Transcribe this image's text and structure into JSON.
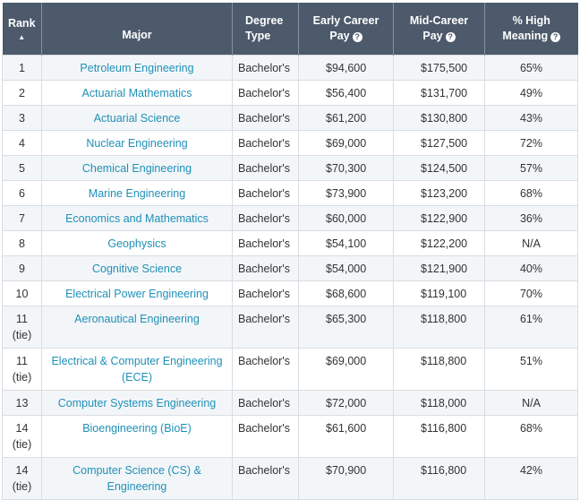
{
  "headers": {
    "rank": "Rank",
    "major": "Major",
    "degree_line1": "Degree",
    "degree_line2": "Type",
    "early_line1": "Early Career",
    "early_line2": "Pay",
    "mid_line1": "Mid-Career",
    "mid_line2": "Pay",
    "meaning_line1": "% High",
    "meaning_line2": "Meaning",
    "sort_indicator": "▲"
  },
  "rows": [
    {
      "rank": "1",
      "major": "Petroleum Engineering",
      "degree": "Bachelor's",
      "early": "$94,600",
      "mid": "$175,500",
      "meaning": "65%"
    },
    {
      "rank": "2",
      "major": "Actuarial Mathematics",
      "degree": "Bachelor's",
      "early": "$56,400",
      "mid": "$131,700",
      "meaning": "49%"
    },
    {
      "rank": "3",
      "major": "Actuarial Science",
      "degree": "Bachelor's",
      "early": "$61,200",
      "mid": "$130,800",
      "meaning": "43%"
    },
    {
      "rank": "4",
      "major": "Nuclear Engineering",
      "degree": "Bachelor's",
      "early": "$69,000",
      "mid": "$127,500",
      "meaning": "72%"
    },
    {
      "rank": "5",
      "major": "Chemical Engineering",
      "degree": "Bachelor's",
      "early": "$70,300",
      "mid": "$124,500",
      "meaning": "57%"
    },
    {
      "rank": "6",
      "major": "Marine Engineering",
      "degree": "Bachelor's",
      "early": "$73,900",
      "mid": "$123,200",
      "meaning": "68%"
    },
    {
      "rank": "7",
      "major": "Economics and Mathematics",
      "degree": "Bachelor's",
      "early": "$60,000",
      "mid": "$122,900",
      "meaning": "36%"
    },
    {
      "rank": "8",
      "major": "Geophysics",
      "degree": "Bachelor's",
      "early": "$54,100",
      "mid": "$122,200",
      "meaning": "N/A"
    },
    {
      "rank": "9",
      "major": "Cognitive Science",
      "degree": "Bachelor's",
      "early": "$54,000",
      "mid": "$121,900",
      "meaning": "40%"
    },
    {
      "rank": "10",
      "major": "Electrical Power Engineering",
      "degree": "Bachelor's",
      "early": "$68,600",
      "mid": "$119,100",
      "meaning": "70%"
    },
    {
      "rank": "11 (tie)",
      "major": "Aeronautical Engineering",
      "degree": "Bachelor's",
      "early": "$65,300",
      "mid": "$118,800",
      "meaning": "61%"
    },
    {
      "rank": "11 (tie)",
      "major": "Electrical & Computer Engineering (ECE)",
      "degree": "Bachelor's",
      "early": "$69,000",
      "mid": "$118,800",
      "meaning": "51%"
    },
    {
      "rank": "13",
      "major": "Computer Systems Engineering",
      "degree": "Bachelor's",
      "early": "$72,000",
      "mid": "$118,000",
      "meaning": "N/A"
    },
    {
      "rank": "14 (tie)",
      "major": "Bioengineering (BioE)",
      "degree": "Bachelor's",
      "early": "$61,600",
      "mid": "$116,800",
      "meaning": "68%"
    },
    {
      "rank": "14 (tie)",
      "major": "Computer Science (CS) & Engineering",
      "degree": "Bachelor's",
      "early": "$70,900",
      "mid": "$116,800",
      "meaning": "42%"
    }
  ],
  "colors": {
    "header_bg": "#4c5a6b",
    "link": "#1f90b8",
    "row_alt": "#f3f6f8"
  },
  "icons": {
    "info": "info-icon",
    "sort": "sort-ascending-icon"
  }
}
